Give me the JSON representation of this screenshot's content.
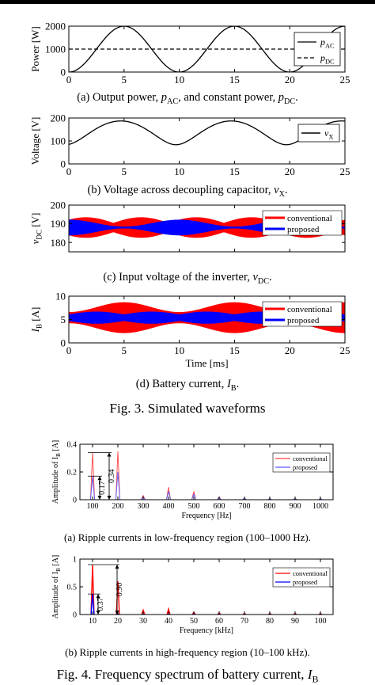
{
  "chart_data": [
    {
      "id": "a",
      "type": "line",
      "ylabel": "Power [W]",
      "xlim": [
        0,
        25
      ],
      "ylim": [
        0,
        2000
      ],
      "xticks": [
        "0",
        "5",
        "10",
        "15",
        "20",
        "25"
      ],
      "yticks": [
        "0",
        "1000",
        "2000"
      ],
      "legend_position": "right",
      "grid": false,
      "series": [
        {
          "name": "p_AC",
          "name_main": "p",
          "name_sub": "AC",
          "style": "solid",
          "color": "#000000",
          "formula": "1000*(1-cos(2*pi*x/10))"
        },
        {
          "name": "p_DC",
          "name_main": "p",
          "name_sub": "DC",
          "style": "dashed",
          "color": "#000000",
          "formula": "1000"
        }
      ]
    },
    {
      "id": "b",
      "type": "line",
      "ylabel": "Voltage [V]",
      "xlim": [
        0,
        25
      ],
      "ylim": [
        0,
        200
      ],
      "xticks": [
        "0",
        "5",
        "10",
        "15",
        "20",
        "25"
      ],
      "yticks": [
        "0",
        "100",
        "200"
      ],
      "legend_position": "top-right",
      "grid": false,
      "series": [
        {
          "name": "v_X",
          "name_main": "v",
          "name_sub": "X",
          "style": "solid",
          "color": "#000000",
          "formula": "sqrt(2.1e4 - 1.4e4*cos(2*pi*(x+0.3)/10))"
        }
      ]
    },
    {
      "id": "c",
      "type": "area",
      "ylabel": "v_DC [V]",
      "ylabel_main": "v",
      "ylabel_sub": "DC",
      "ylabel_unit": " [V]",
      "xlim": [
        0,
        25
      ],
      "ylim": [
        175,
        200
      ],
      "yticks": [
        "180",
        "190",
        "200"
      ],
      "legend_position": "top-right",
      "grid": false,
      "series": [
        {
          "name": "conventional",
          "color": "#ff0000",
          "center": 188,
          "amplitude_range": [
            2.5,
            5.5
          ]
        },
        {
          "name": "proposed",
          "color": "#0000ff",
          "center": 188,
          "amplitude_range": [
            0.5,
            4.2
          ]
        }
      ]
    },
    {
      "id": "d",
      "type": "area",
      "ylabel": "I_B [A]",
      "ylabel_main": "I",
      "ylabel_sub": "B",
      "ylabel_unit": " [A]",
      "xlabel": "Time [ms]",
      "xlim": [
        0,
        25
      ],
      "ylim": [
        0,
        10
      ],
      "xticks": [
        "0",
        "5",
        "10",
        "15",
        "20",
        "25"
      ],
      "yticks": [
        "0",
        "5",
        "10"
      ],
      "legend_position": "top-right",
      "grid": false,
      "series": [
        {
          "name": "conventional",
          "color": "#ff0000",
          "center": 5.4,
          "amplitude_range": [
            1.2,
            3.3
          ]
        },
        {
          "name": "proposed",
          "color": "#0000ff",
          "center": 5.4,
          "amplitude_range": [
            0.7,
            1.3
          ]
        }
      ]
    },
    {
      "id": "e",
      "type": "line",
      "ylabel": "Amplitude of I_B [A]",
      "ylabel_main": "Amplitude of I",
      "ylabel_sub": "B",
      "ylabel_unit": " [A]",
      "xlabel": "Frequency [Hz]",
      "xlim": [
        50,
        1050
      ],
      "ylim": [
        0,
        0.4
      ],
      "xticks": [
        "100",
        "200",
        "300",
        "400",
        "500",
        "600",
        "700",
        "800",
        "900",
        "1000"
      ],
      "yticks": [
        "0",
        "0.2",
        "0.4"
      ],
      "legend_position": "top-right",
      "grid": false,
      "series": [
        {
          "name": "conventional",
          "color": "#ff4444",
          "x": [
            100,
            200,
            300,
            400,
            500,
            600,
            700,
            800,
            900,
            1000
          ],
          "values": [
            0.34,
            0.35,
            0.03,
            0.09,
            0.06,
            0.02,
            0.012,
            0.01,
            0.01,
            0.01
          ]
        },
        {
          "name": "proposed",
          "color": "#5a5aff",
          "x": [
            100,
            200,
            300,
            400,
            500,
            600,
            700,
            800,
            900,
            1000
          ],
          "values": [
            0.17,
            0.2,
            0.02,
            0.06,
            0.04,
            0.015,
            0.01,
            0.008,
            0.008,
            0.008
          ]
        }
      ],
      "annotations": [
        "0.17",
        "0.34"
      ]
    },
    {
      "id": "f",
      "type": "line",
      "ylabel": "Amplitude of I_B [A]",
      "ylabel_main": "Amplitude of I",
      "ylabel_sub": "B",
      "ylabel_unit": " [A]",
      "xlabel": "Frequency [kHz]",
      "xlim": [
        5,
        105
      ],
      "ylim": [
        0,
        1
      ],
      "xticks": [
        "10",
        "20",
        "30",
        "40",
        "50",
        "60",
        "70",
        "80",
        "90",
        "100"
      ],
      "yticks": [
        "0",
        "0.5",
        "1"
      ],
      "legend_position": "top-right",
      "grid": false,
      "series": [
        {
          "name": "conventional",
          "color": "#ff0000",
          "x": [
            10,
            20,
            30,
            40,
            50,
            60,
            70,
            80,
            90,
            100
          ],
          "values": [
            0.9,
            0.6,
            0.08,
            0.1,
            0.04,
            0.03,
            0.02,
            0.02,
            0.02,
            0.02
          ]
        },
        {
          "name": "proposed",
          "color": "#0000ff",
          "x": [
            10,
            20,
            30,
            40,
            50,
            60,
            70,
            80,
            90,
            100
          ],
          "values": [
            0.37,
            0.01,
            0.005,
            0.005,
            0.004,
            0.003,
            0.003,
            0.003,
            0.003,
            0.003
          ]
        }
      ],
      "annotations": [
        "0.37",
        "0.90"
      ]
    }
  ],
  "captions": {
    "a": {
      "pre": "(a) Output power, ",
      "v1": "p",
      "s1": "AC",
      "mid": ", and constant power, ",
      "v2": "p",
      "s2": "DC",
      "post": "."
    },
    "b": {
      "pre": "(b) Voltage across decoupling capacitor, ",
      "v1": "v",
      "s1": "X",
      "post": "."
    },
    "c": {
      "pre": "(c) Input voltage of the inverter, ",
      "v1": "v",
      "s1": "DC",
      "post": "."
    },
    "d": {
      "pre": "(d) Battery current, ",
      "v1": "I",
      "s1": "B",
      "post": "."
    },
    "fig3": "Fig. 3.    Simulated waveforms",
    "e": "(a) Ripple currents in low-frequency region (100–1000 Hz).",
    "f": "(b) Ripple currents in high-frequency region (10–100 kHz).",
    "fig4": {
      "pre": "Fig. 4.    Frequency spectrum of battery current, ",
      "v1": "I",
      "s1": "B"
    }
  }
}
